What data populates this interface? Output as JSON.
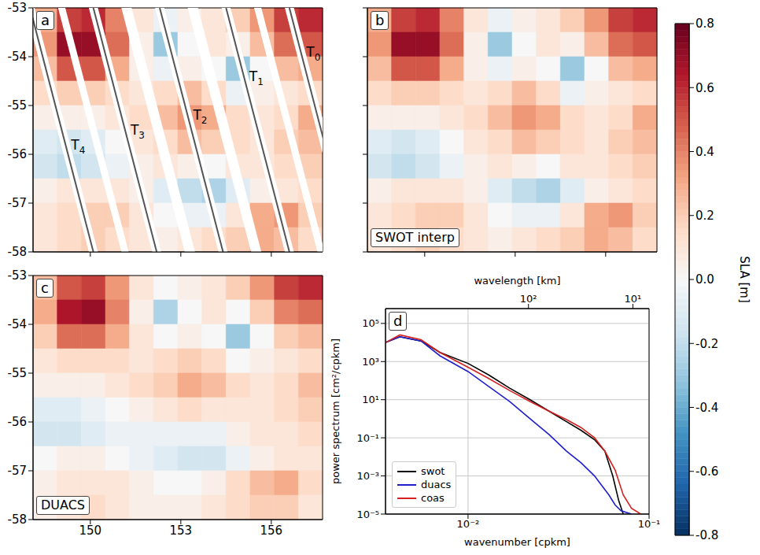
{
  "chart_data": [
    {
      "type": "heatmap",
      "panel": "a",
      "xlim": [
        148.1,
        157.7
      ],
      "ylim": [
        -58,
        -53
      ],
      "xticks": [
        150,
        153,
        156
      ],
      "yticks": [
        -58,
        -57,
        -56,
        -55,
        -54,
        -53
      ],
      "tick_labels": "y",
      "lon_edges": [
        148.1,
        148.9,
        149.7,
        150.5,
        151.3,
        152.1,
        152.9,
        153.7,
        154.5,
        155.3,
        156.1,
        156.9,
        157.7
      ],
      "lat_edges": [
        -53,
        -53.5,
        -54,
        -54.5,
        -55,
        -55.5,
        -56,
        -56.5,
        -57,
        -57.5,
        -58
      ],
      "sla": [
        [
          0.3,
          0.55,
          0.6,
          0.4,
          0.1,
          -0.05,
          0.05,
          0.1,
          0.2,
          0.35,
          0.55,
          0.6
        ],
        [
          0.35,
          0.7,
          0.7,
          0.45,
          0.05,
          -0.3,
          0,
          0.1,
          0.05,
          0.25,
          0.45,
          0.5
        ],
        [
          0.25,
          0.5,
          0.5,
          0.3,
          0.05,
          -0.05,
          0.05,
          0,
          -0.3,
          0,
          0.25,
          0.3
        ],
        [
          0.15,
          0.2,
          0.2,
          0.15,
          0.1,
          0.15,
          0.25,
          0.15,
          -0.05,
          0.05,
          0.1,
          0.15
        ],
        [
          0.05,
          0.05,
          0.05,
          0.1,
          0.15,
          0.25,
          0.35,
          0.3,
          0.15,
          0.1,
          0.15,
          0.3
        ],
        [
          -0.1,
          -0.15,
          -0.1,
          0,
          0.1,
          0.15,
          0.25,
          0.2,
          0.15,
          0.1,
          0.2,
          0.25
        ],
        [
          -0.15,
          -0.2,
          -0.15,
          -0.05,
          0.05,
          0.1,
          0.05,
          0,
          0.1,
          0.1,
          0.15,
          0.2
        ],
        [
          0.05,
          0.1,
          0.1,
          0.1,
          0.05,
          -0.1,
          -0.2,
          -0.25,
          -0.1,
          0.05,
          0.1,
          0.15
        ],
        [
          0.1,
          0.15,
          0.2,
          0.2,
          0.1,
          0,
          -0.05,
          -0.05,
          0.1,
          0.3,
          0.35,
          0.2
        ],
        [
          0.1,
          0.15,
          0.2,
          0.15,
          0.1,
          0.05,
          0.1,
          0.15,
          0.2,
          0.3,
          0.25,
          0.15
        ]
      ],
      "swath_width": 0.78,
      "nadir_gap": 0.3,
      "tracks": [
        {
          "name": "T0",
          "lon_north": 156.6,
          "lon_south": 158.7,
          "label_lat": -53.9
        },
        {
          "name": "T1",
          "lon_north": 154.5,
          "lon_south": 156.6,
          "label_lat": -54.4
        },
        {
          "name": "T2",
          "lon_north": 152.3,
          "lon_south": 154.4,
          "label_lat": -55.2
        },
        {
          "name": "T3",
          "lon_north": 150.1,
          "lon_south": 152.2,
          "label_lat": -55.5
        },
        {
          "name": "T4",
          "lon_north": 148.0,
          "lon_south": 150.1,
          "label_lat": -55.8
        }
      ]
    },
    {
      "type": "heatmap",
      "panel": "b",
      "label": "SWOT interp",
      "xlim": [
        148.1,
        157.7
      ],
      "ylim": [
        -58,
        -53
      ],
      "xticks": [
        150,
        153,
        156
      ],
      "yticks": [
        -58,
        -57,
        -56,
        -55,
        -54,
        -53
      ],
      "tick_labels": false,
      "lon_edges": [
        148.1,
        148.9,
        149.7,
        150.5,
        151.3,
        152.1,
        152.9,
        153.7,
        154.5,
        155.3,
        156.1,
        156.9,
        157.7
      ],
      "lat_edges": [
        -53,
        -53.5,
        -54,
        -54.5,
        -55,
        -55.5,
        -56,
        -56.5,
        -57,
        -57.5,
        -58
      ],
      "sla": [
        [
          0.3,
          0.55,
          0.6,
          0.4,
          0.1,
          -0.05,
          0.05,
          0.1,
          0.2,
          0.35,
          0.55,
          0.6
        ],
        [
          0.35,
          0.7,
          0.7,
          0.45,
          0.05,
          -0.3,
          0,
          0.1,
          0.05,
          0.25,
          0.45,
          0.5
        ],
        [
          0.25,
          0.5,
          0.5,
          0.3,
          0.05,
          -0.05,
          0.05,
          0,
          -0.3,
          0,
          0.25,
          0.3
        ],
        [
          0.15,
          0.2,
          0.2,
          0.15,
          0.1,
          0.15,
          0.25,
          0.15,
          -0.05,
          0.05,
          0.1,
          0.15
        ],
        [
          0.05,
          0.05,
          0.05,
          0.1,
          0.15,
          0.25,
          0.35,
          0.3,
          0.15,
          0.1,
          0.15,
          0.3
        ],
        [
          -0.1,
          -0.15,
          -0.1,
          0,
          0.1,
          0.15,
          0.25,
          0.2,
          0.15,
          0.1,
          0.2,
          0.25
        ],
        [
          -0.15,
          -0.2,
          -0.15,
          -0.05,
          0.05,
          0.1,
          0.05,
          0,
          0.1,
          0.1,
          0.15,
          0.2
        ],
        [
          0.05,
          0.1,
          0.1,
          0.1,
          0.05,
          -0.1,
          -0.2,
          -0.25,
          -0.1,
          0.05,
          0.1,
          0.15
        ],
        [
          0.1,
          0.15,
          0.2,
          0.2,
          0.1,
          0,
          -0.05,
          -0.05,
          0.1,
          0.3,
          0.35,
          0.2
        ],
        [
          0.1,
          0.15,
          0.2,
          0.15,
          0.1,
          0.05,
          0.1,
          0.15,
          0.2,
          0.3,
          0.25,
          0.15
        ]
      ]
    },
    {
      "type": "heatmap",
      "panel": "c",
      "label": "DUACS",
      "xlim": [
        148.1,
        157.7
      ],
      "ylim": [
        -58,
        -53
      ],
      "xticks": [
        150,
        153,
        156
      ],
      "yticks": [
        -58,
        -57,
        -56,
        -55,
        -54,
        -53
      ],
      "lon_edges": [
        148.1,
        148.9,
        149.7,
        150.5,
        151.3,
        152.1,
        152.9,
        153.7,
        154.5,
        155.3,
        156.1,
        156.9,
        157.7
      ],
      "lat_edges": [
        -53,
        -53.5,
        -54,
        -54.5,
        -55,
        -55.5,
        -56,
        -56.5,
        -57,
        -57.5,
        -58
      ],
      "sla": [
        [
          0.25,
          0.5,
          0.55,
          0.35,
          0.1,
          0,
          0.05,
          0.1,
          0.2,
          0.35,
          0.55,
          0.6
        ],
        [
          0.3,
          0.65,
          0.7,
          0.4,
          0.05,
          -0.25,
          0,
          0.1,
          0,
          0.2,
          0.4,
          0.45
        ],
        [
          0.2,
          0.45,
          0.45,
          0.3,
          0.1,
          0,
          0.05,
          0,
          -0.3,
          0,
          0.2,
          0.25
        ],
        [
          0.1,
          0.15,
          0.15,
          0.15,
          0.1,
          0.15,
          0.2,
          0.15,
          0,
          0.05,
          0.1,
          0.15
        ],
        [
          0.05,
          0.05,
          0.05,
          0.1,
          0.15,
          0.2,
          0.3,
          0.25,
          0.15,
          0.1,
          0.15,
          0.25
        ],
        [
          -0.1,
          -0.1,
          -0.05,
          0,
          0.05,
          0.1,
          0.15,
          0.1,
          0.1,
          0.1,
          0.15,
          0.2
        ],
        [
          -0.15,
          -0.15,
          -0.1,
          -0.05,
          -0.05,
          -0.05,
          -0.05,
          -0.05,
          0.05,
          0.1,
          0.1,
          0.15
        ],
        [
          0,
          0.05,
          0.05,
          0,
          -0.05,
          -0.1,
          -0.15,
          -0.15,
          -0.05,
          0.05,
          0.1,
          0.1
        ],
        [
          0.05,
          0.1,
          0.1,
          0.1,
          0.05,
          0,
          0,
          0.05,
          0.15,
          0.25,
          0.3,
          0.15
        ],
        [
          0.05,
          0.1,
          0.15,
          0.1,
          0.05,
          0.05,
          0.05,
          0.1,
          0.15,
          0.2,
          0.2,
          0.1
        ]
      ]
    },
    {
      "type": "line",
      "panel": "d",
      "log": true,
      "grid": true,
      "legend": "lower left",
      "xlabel": "wavenumber [cpkm]",
      "ylabel": "power spectrum [cm²/cpkm]",
      "xlim": [
        0.0035,
        0.1
      ],
      "xticks": [
        {
          "value": 0.01,
          "label": "10⁻²"
        },
        {
          "value": 0.1,
          "label": "10⁻¹"
        }
      ],
      "ylim": [
        1e-05,
        600000
      ],
      "yticks": [
        {
          "value": 100000,
          "label": "10⁵"
        },
        {
          "value": 1000,
          "label": "10³"
        },
        {
          "value": 10,
          "label": "10¹"
        },
        {
          "value": 0.1,
          "label": "10⁻¹"
        },
        {
          "value": 0.001,
          "label": "10⁻³"
        },
        {
          "value": 1e-05,
          "label": "10⁻⁵"
        }
      ],
      "top_axis": {
        "label": "wavelength [km]",
        "lim": [
          2340,
          7
        ],
        "ticks": [
          {
            "value": 100,
            "label": "10²"
          },
          {
            "value": 10,
            "label": "10¹"
          }
        ]
      },
      "series": [
        {
          "name": "swot",
          "color": "#000000",
          "x": [
            0.0035,
            0.0042,
            0.0055,
            0.007,
            0.01,
            0.013,
            0.017,
            0.022,
            0.028,
            0.035,
            0.042,
            0.05,
            0.057,
            0.063,
            0.068,
            0.072
          ],
          "values": [
            10000,
            20000,
            12000,
            3000,
            800,
            200,
            40,
            10,
            2.5,
            0.7,
            0.25,
            0.08,
            0.02,
            0.001,
            5e-05,
            1e-05
          ]
        },
        {
          "name": "duacs",
          "color": "#1f1fcc",
          "x": [
            0.0035,
            0.0042,
            0.0055,
            0.007,
            0.01,
            0.013,
            0.017,
            0.022,
            0.028,
            0.035,
            0.042,
            0.05,
            0.055,
            0.06,
            0.065,
            0.07,
            0.08
          ],
          "values": [
            10000,
            20000,
            12000,
            2000,
            300,
            50,
            8,
            1,
            0.15,
            0.02,
            0.005,
            0.001,
            0.0003,
            0.0001,
            3e-05,
            1.5e-05,
            1e-05
          ]
        },
        {
          "name": "coas",
          "color": "#d62020",
          "x": [
            0.0035,
            0.0042,
            0.0055,
            0.007,
            0.01,
            0.013,
            0.017,
            0.022,
            0.028,
            0.035,
            0.042,
            0.05,
            0.057,
            0.065,
            0.072,
            0.08,
            0.09
          ],
          "values": [
            10000,
            25000,
            14000,
            3000,
            500,
            130,
            30,
            8,
            2.5,
            0.9,
            0.35,
            0.1,
            0.02,
            0.002,
            0.0001,
            2e-05,
            1e-05
          ]
        }
      ]
    }
  ],
  "colorbar": {
    "label": "SLA [m]",
    "range": [
      -0.8,
      0.8
    ],
    "ticks": [
      -0.8,
      -0.6,
      -0.4,
      -0.2,
      {
        "value": 0,
        "label": "0.0"
      },
      0.2,
      0.4,
      0.6,
      0.8
    ]
  }
}
